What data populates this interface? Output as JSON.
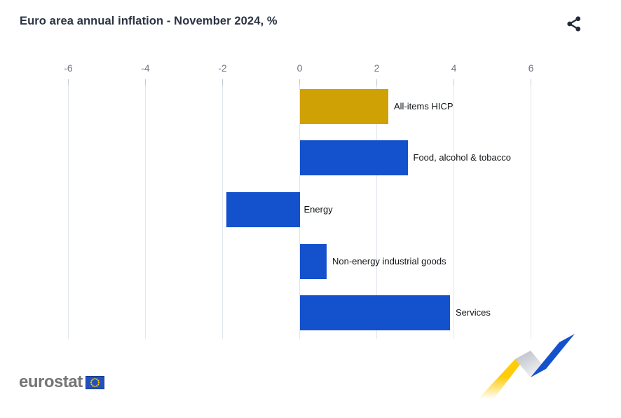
{
  "header": {
    "title": "Euro area annual inflation - November 2024, %"
  },
  "icons": {
    "share": "share-icon",
    "eu_flag": "eu-flag-icon",
    "ribbon": "trend-ribbon-graphic"
  },
  "chart_data": {
    "type": "bar",
    "orientation": "horizontal",
    "title": "Euro area annual inflation - November 2024, %",
    "categories": [
      "All-items HICP",
      "Food, alcohol & tobacco",
      "Energy",
      "Non-energy industrial goods",
      "Services"
    ],
    "values": [
      2.3,
      2.8,
      -1.9,
      0.7,
      3.9
    ],
    "bar_colors": [
      "#cfa104",
      "#1451cc",
      "#1451cc",
      "#1451cc",
      "#1451cc"
    ],
    "x_ticks": [
      -6,
      -4,
      -2,
      0,
      2,
      4,
      6
    ],
    "xlim": [
      -6,
      6
    ],
    "xlabel": "",
    "ylabel": "",
    "grid": true,
    "legend": "none",
    "accent_gold": "#cfa104",
    "accent_blue": "#1451cc"
  },
  "footer": {
    "logo_text": "eurostat"
  }
}
